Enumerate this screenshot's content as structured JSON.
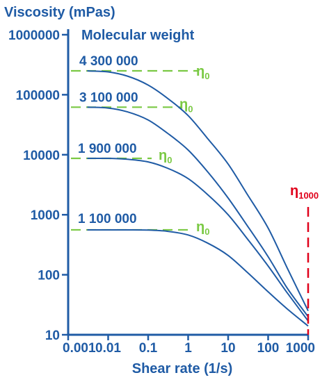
{
  "colors": {
    "axis": "#1f5ba5",
    "curve": "#1f5ba5",
    "eta0": "#7ac943",
    "eta1000": "#e0001a",
    "text_blue": "#1f5ba5"
  },
  "chart_data": {
    "type": "line",
    "title": "",
    "ylabel": "Viscosity (mPas)",
    "xlabel": "Shear rate (1/s)",
    "legend_title": "Molecular weight",
    "x_scale": "log",
    "y_scale": "log",
    "xlim": [
      0.001,
      1000
    ],
    "ylim": [
      10,
      1000000
    ],
    "x_ticks": [
      0.001,
      0.01,
      0.1,
      1,
      10,
      100,
      1000
    ],
    "x_tick_labels": [
      "0.001",
      "0.01",
      "0.1",
      "1",
      "10",
      "100",
      "1000"
    ],
    "y_ticks": [
      10,
      100,
      1000,
      10000,
      100000,
      1000000
    ],
    "y_tick_labels": [
      "10",
      "100",
      "1000",
      "10000",
      "100000",
      "1000000"
    ],
    "grid": false,
    "series": [
      {
        "name": "4 300 000",
        "x": [
          0.003,
          0.01,
          0.03,
          0.1,
          0.3,
          1,
          3,
          10,
          30,
          100,
          300,
          1000
        ],
        "y": [
          250000,
          240000,
          205000,
          145000,
          88000,
          45000,
          19000,
          7000,
          2200,
          600,
          130,
          25
        ]
      },
      {
        "name": "3 100 000",
        "x": [
          0.003,
          0.01,
          0.03,
          0.1,
          0.3,
          1,
          3,
          10,
          30,
          100,
          300,
          1000
        ],
        "y": [
          62000,
          60000,
          52000,
          38000,
          23000,
          12000,
          5300,
          1900,
          660,
          200,
          60,
          20
        ]
      },
      {
        "name": "1 900 000",
        "x": [
          0.003,
          0.01,
          0.03,
          0.1,
          0.3,
          1,
          3,
          10,
          30,
          100,
          300,
          1000
        ],
        "y": [
          8700,
          8700,
          8400,
          7600,
          6000,
          4000,
          2200,
          1000,
          400,
          140,
          50,
          17
        ]
      },
      {
        "name": "1 100 000",
        "x": [
          0.003,
          0.01,
          0.03,
          0.1,
          0.3,
          1,
          3,
          10,
          30,
          100,
          300,
          1000
        ],
        "y": [
          560,
          560,
          560,
          555,
          530,
          460,
          340,
          210,
          110,
          52,
          27,
          14
        ]
      }
    ],
    "reference_lines": [
      {
        "label": "η",
        "subscript": "0",
        "y": 250000
      },
      {
        "label": "η",
        "subscript": "0",
        "y": 62000
      },
      {
        "label": "η",
        "subscript": "0",
        "y": 8700
      },
      {
        "label": "η",
        "subscript": "0",
        "y": 560
      }
    ],
    "vertical_marker": {
      "label": "η",
      "subscript": "1000",
      "x": 1000
    }
  }
}
